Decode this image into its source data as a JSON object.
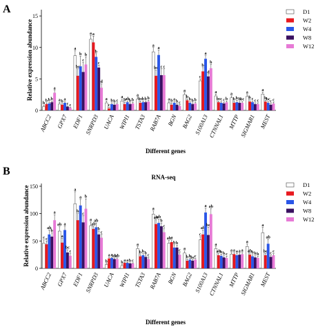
{
  "figure": {
    "colors": {
      "D1": "#ffffff",
      "W2": "#e8191f",
      "W4": "#2a56e8",
      "W8": "#3a1060",
      "W12": "#e77ad6"
    },
    "genes": [
      "ABCC2",
      "GPX7",
      "EDF1",
      "SNRPD3",
      "UACA",
      "WIPI1",
      "TSTA3",
      "RAB7A",
      "BGN",
      "BAG2",
      "S100A13",
      "CTNNAL1",
      "MTTP",
      "SIGMAR1",
      "MEST"
    ]
  },
  "chart_data": [
    {
      "type": "bar",
      "panel": "A",
      "title": "",
      "xlabel": "Different genes",
      "ylabel": "Relative expression abundance",
      "ylim": [
        0,
        16
      ],
      "yticks": [
        0,
        5,
        10,
        15
      ],
      "categories": [
        "ABCC2",
        "GPX7",
        "EDF1",
        "SNRPD3",
        "UACA",
        "WIPI1",
        "TSTA3",
        "RAB7A",
        "BGN",
        "BAG2",
        "S100A13",
        "CTNNAL1",
        "MTTP",
        "SIGMAR1",
        "MEST"
      ],
      "legend": {
        "placement": "top-right",
        "entries": [
          "D1",
          "W2",
          "W4",
          "W8",
          "W12"
        ]
      },
      "series": [
        {
          "name": "D1",
          "values": [
            0.6,
            1.0,
            8.7,
            11.3,
            1.2,
            1.5,
            1.8,
            9.3,
            1.2,
            2.5,
            4.7,
            2.3,
            2.0,
            2.2,
            2.6
          ]
        },
        {
          "name": "W2",
          "values": [
            1.0,
            0.9,
            5.5,
            10.8,
            0.3,
            1.0,
            1.2,
            5.5,
            0.9,
            1.6,
            6.2,
            1.3,
            1.2,
            1.4,
            1.4
          ]
        },
        {
          "name": "W4",
          "values": [
            1.1,
            1.2,
            7.0,
            8.5,
            1.0,
            1.3,
            1.3,
            8.8,
            1.2,
            1.2,
            8.2,
            1.2,
            1.3,
            1.3,
            1.2
          ]
        },
        {
          "name": "W8",
          "values": [
            1.3,
            0.6,
            6.1,
            6.8,
            0.9,
            1.0,
            1.3,
            5.6,
            0.9,
            1.0,
            5.4,
            1.1,
            1.2,
            1.0,
            0.9
          ]
        },
        {
          "name": "W12",
          "values": [
            2.8,
            0.4,
            7.3,
            3.6,
            1.0,
            1.1,
            1.4,
            5.6,
            0.7,
            1.1,
            6.7,
            1.3,
            1.2,
            1.0,
            1.1
          ]
        }
      ],
      "errors": [
        [
          0.2,
          0.3,
          0.8,
          0.6,
          0.3,
          0.3,
          0.3,
          0.7,
          0.2,
          0.3,
          0.3,
          0.3,
          0.3,
          0.3,
          0.3
        ],
        [
          0.2,
          0.2,
          1.1,
          1.0,
          0.2,
          0.3,
          0.3,
          0.9,
          0.3,
          0.2,
          0.6,
          0.2,
          0.2,
          0.3,
          0.2
        ],
        [
          0.2,
          0.2,
          1.6,
          0.5,
          0.2,
          0.2,
          0.2,
          0.8,
          0.2,
          0.2,
          0.5,
          0.2,
          0.3,
          0.2,
          0.2
        ],
        [
          0.2,
          0.1,
          1.5,
          0.4,
          0.2,
          0.2,
          0.2,
          1.0,
          0.2,
          0.2,
          0.3,
          0.2,
          0.2,
          0.2,
          0.2
        ],
        [
          0.4,
          0.1,
          1.2,
          0.6,
          0.2,
          0.2,
          0.2,
          1.0,
          0.2,
          0.2,
          0.6,
          0.2,
          0.2,
          0.2,
          0.2
        ]
      ],
      "significance": [
        [
          "b",
          "a",
          "a",
          "a",
          "a",
          "a",
          "a",
          "a",
          "a",
          "a",
          "c",
          "a",
          "a",
          "a",
          "a"
        ],
        [
          "b",
          "b",
          "bc",
          "a",
          "c",
          "b",
          "bc",
          "bc",
          "b",
          "b",
          "b",
          "bc",
          "b",
          "b",
          "b"
        ],
        [
          "b",
          "a",
          "b",
          "b",
          "b",
          "ab",
          "b",
          "a",
          "a",
          "b",
          "a",
          "c",
          "b",
          "c",
          "bc"
        ],
        [
          "b",
          "c",
          "c",
          "c",
          "b",
          "b",
          "b",
          "c",
          "b",
          "b",
          "d",
          "c",
          "b",
          "c",
          "c"
        ],
        [
          "a",
          "c",
          "b",
          "d",
          "c",
          "b",
          "b",
          "c",
          "c",
          "b",
          "b",
          "b",
          "bc",
          "c",
          "c"
        ]
      ]
    },
    {
      "type": "bar",
      "panel": "B",
      "title": "RNA-seq",
      "xlabel": "Different genes",
      "ylabel": "Relative expression abundance",
      "ylim": [
        0,
        155
      ],
      "yticks": [
        0,
        50,
        100,
        150
      ],
      "categories": [
        "ABCC2",
        "GPX7",
        "EDF1",
        "SNRPD3",
        "UACA",
        "WIPI1",
        "TSTA3",
        "RAB7A",
        "BGN",
        "BAG2",
        "S100A13",
        "CTNNAL1",
        "MTTP",
        "SIGMAR1",
        "MEST"
      ],
      "legend": {
        "placement": "top-right",
        "entries": [
          "D1",
          "W2",
          "W4",
          "W8",
          "W12"
        ]
      },
      "series": [
        {
          "name": "D1",
          "values": [
            46,
            68,
            118,
            78,
            7,
            5,
            36,
            99,
            46,
            28,
            52,
            36,
            26,
            40,
            65
          ]
        },
        {
          "name": "W2",
          "values": [
            44,
            47,
            88,
            72,
            18,
            10,
            22,
            81,
            48,
            14,
            62,
            24,
            26,
            25,
            24
          ]
        },
        {
          "name": "W4",
          "values": [
            62,
            70,
            115,
            75,
            19,
            10,
            24,
            83,
            38,
            16,
            102,
            23,
            24,
            22,
            45
          ]
        },
        {
          "name": "W8",
          "values": [
            58,
            29,
            84,
            62,
            17,
            9,
            21,
            77,
            38,
            14,
            61,
            20,
            25,
            20,
            21
          ]
        },
        {
          "name": "W12",
          "values": [
            88,
            23,
            109,
            56,
            17,
            9,
            17,
            66,
            25,
            16,
            99,
            19,
            26,
            19,
            24
          ]
        }
      ],
      "errors": [
        [
          6,
          8,
          22,
          7,
          2,
          2,
          4,
          6,
          5,
          4,
          6,
          4,
          3,
          5,
          10
        ],
        [
          6,
          8,
          12,
          5,
          2,
          1,
          3,
          8,
          4,
          3,
          8,
          3,
          3,
          3,
          3
        ],
        [
          8,
          7,
          11,
          8,
          2,
          1,
          3,
          7,
          5,
          2,
          8,
          3,
          3,
          3,
          8
        ],
        [
          7,
          5,
          12,
          6,
          2,
          1,
          3,
          6,
          4,
          2,
          14,
          3,
          3,
          3,
          3
        ],
        [
          10,
          4,
          18,
          6,
          2,
          1,
          3,
          7,
          4,
          2,
          10,
          3,
          3,
          3,
          3
        ]
      ],
      "significance": [
        [
          "c",
          "ab",
          "a",
          "a",
          "b",
          "b",
          "a",
          "a",
          "ab",
          "a",
          "c",
          "a",
          "a",
          "a",
          "a"
        ],
        [
          "c",
          "a",
          "b",
          "ab",
          "a",
          "a",
          "b",
          "ab",
          "a",
          "b",
          "ab",
          "ab",
          "a",
          "ab",
          "bc"
        ],
        [
          "ab",
          "a",
          "a",
          "ab",
          "a",
          "a",
          "b",
          "ab",
          "b",
          "b",
          "a",
          "b",
          "a",
          "b",
          "ab"
        ],
        [
          "b",
          "bc",
          "c",
          "b",
          "ab",
          "b",
          "b",
          "b",
          "b",
          "bc",
          "bc",
          "b",
          "a",
          "b",
          "c"
        ],
        [
          "a",
          "c",
          "b",
          "c",
          "ab",
          "c",
          "c",
          "c",
          "c",
          "c",
          "ab",
          "c",
          "a",
          "b",
          "c"
        ]
      ]
    }
  ]
}
